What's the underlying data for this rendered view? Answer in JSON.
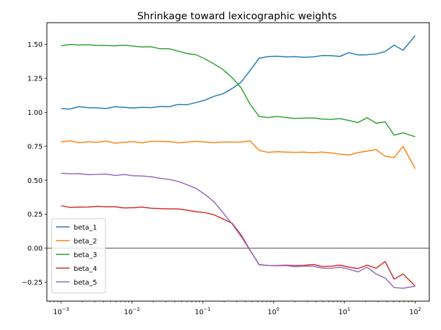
{
  "chart_data": {
    "type": "line",
    "title": "Shrinkage toward lexicographic weights",
    "xlabel": "",
    "ylabel": "",
    "xscale": "log",
    "xlim": [
      0.00063,
      158
    ],
    "ylim": [
      -0.39,
      1.66
    ],
    "x_ticks": [
      {
        "value": 0.001,
        "base": "10",
        "exp": "−3"
      },
      {
        "value": 0.01,
        "base": "10",
        "exp": "−2"
      },
      {
        "value": 0.1,
        "base": "10",
        "exp": "−1"
      },
      {
        "value": 1,
        "base": "10",
        "exp": "0"
      },
      {
        "value": 10,
        "base": "10",
        "exp": "1"
      },
      {
        "value": 100,
        "base": "10",
        "exp": "2"
      }
    ],
    "y_ticks": [
      {
        "value": -0.25,
        "label": "−0.25"
      },
      {
        "value": 0.0,
        "label": "0.00"
      },
      {
        "value": 0.25,
        "label": "0.25"
      },
      {
        "value": 0.5,
        "label": "0.50"
      },
      {
        "value": 0.75,
        "label": "0.75"
      },
      {
        "value": 1.0,
        "label": "1.00"
      },
      {
        "value": 1.25,
        "label": "1.25"
      },
      {
        "value": 1.5,
        "label": "1.50"
      }
    ],
    "grid": false,
    "legend_position": "lower-left",
    "reference_line": {
      "y": 0,
      "color": "#808080"
    },
    "x": [
      0.001,
      0.00134,
      0.00179,
      0.0024,
      0.00322,
      0.00431,
      0.00578,
      0.00774,
      0.0104,
      0.0139,
      0.0186,
      0.025,
      0.0335,
      0.0449,
      0.0601,
      0.0806,
      0.108,
      0.145,
      0.194,
      0.26,
      0.348,
      0.466,
      0.625,
      0.838,
      1.12,
      1.5,
      2.01,
      2.7,
      3.61,
      4.84,
      6.49,
      8.69,
      11.6,
      15.6,
      20.9,
      28.0,
      37.6,
      50.3,
      67.4,
      100
    ],
    "series": [
      {
        "name": "beta_1",
        "color": "#1f77b4",
        "values": [
          1.027,
          1.024,
          1.042,
          1.034,
          1.033,
          1.028,
          1.041,
          1.037,
          1.032,
          1.037,
          1.034,
          1.043,
          1.041,
          1.058,
          1.056,
          1.072,
          1.09,
          1.118,
          1.137,
          1.175,
          1.222,
          1.308,
          1.399,
          1.41,
          1.413,
          1.408,
          1.41,
          1.405,
          1.408,
          1.418,
          1.417,
          1.412,
          1.44,
          1.423,
          1.424,
          1.43,
          1.447,
          1.495,
          1.457,
          1.565
        ]
      },
      {
        "name": "beta_2",
        "color": "#ff7f0e",
        "values": [
          0.782,
          0.79,
          0.776,
          0.783,
          0.779,
          0.788,
          0.773,
          0.779,
          0.785,
          0.775,
          0.787,
          0.787,
          0.785,
          0.775,
          0.781,
          0.787,
          0.781,
          0.776,
          0.782,
          0.781,
          0.781,
          0.79,
          0.72,
          0.705,
          0.71,
          0.707,
          0.705,
          0.707,
          0.702,
          0.708,
          0.701,
          0.692,
          0.685,
          0.704,
          0.714,
          0.726,
          0.677,
          0.667,
          0.75,
          0.585
        ]
      },
      {
        "name": "beta_3",
        "color": "#2ca02c",
        "values": [
          1.49,
          1.5,
          1.496,
          1.497,
          1.493,
          1.492,
          1.49,
          1.494,
          1.488,
          1.481,
          1.483,
          1.468,
          1.468,
          1.451,
          1.433,
          1.424,
          1.393,
          1.355,
          1.315,
          1.255,
          1.18,
          1.06,
          0.97,
          0.962,
          0.97,
          0.962,
          0.954,
          0.958,
          0.959,
          0.95,
          0.948,
          0.954,
          0.94,
          0.925,
          0.96,
          0.92,
          0.93,
          0.832,
          0.849,
          0.82
        ]
      },
      {
        "name": "beta_4",
        "color": "#d62728",
        "values": [
          0.312,
          0.3,
          0.302,
          0.303,
          0.307,
          0.305,
          0.305,
          0.296,
          0.298,
          0.303,
          0.294,
          0.291,
          0.289,
          0.289,
          0.28,
          0.268,
          0.262,
          0.245,
          0.215,
          0.183,
          0.098,
          -0.015,
          -0.122,
          -0.128,
          -0.128,
          -0.125,
          -0.129,
          -0.127,
          -0.12,
          -0.135,
          -0.133,
          -0.125,
          -0.14,
          -0.15,
          -0.125,
          -0.148,
          -0.098,
          -0.228,
          -0.19,
          -0.28
        ]
      },
      {
        "name": "beta_5",
        "color": "#9467bd",
        "values": [
          0.551,
          0.548,
          0.549,
          0.542,
          0.543,
          0.546,
          0.535,
          0.542,
          0.533,
          0.531,
          0.526,
          0.514,
          0.506,
          0.491,
          0.467,
          0.44,
          0.395,
          0.34,
          0.26,
          0.178,
          0.086,
          -0.017,
          -0.12,
          -0.128,
          -0.13,
          -0.128,
          -0.136,
          -0.132,
          -0.133,
          -0.147,
          -0.148,
          -0.14,
          -0.155,
          -0.175,
          -0.14,
          -0.19,
          -0.22,
          -0.29,
          -0.295,
          -0.28
        ]
      }
    ]
  }
}
